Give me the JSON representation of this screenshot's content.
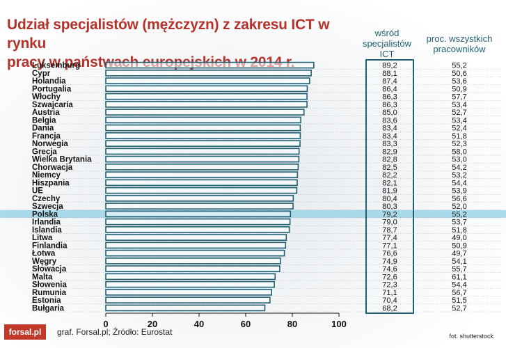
{
  "title_line1": "Udział specjalistów (mężczyzn) z zakresu ICT w rynku",
  "title_line2": "pracy w państwach europejskich w 2014 r.",
  "column_headers": {
    "ict": [
      "wśród",
      "specjalistów",
      "ICT"
    ],
    "all": [
      "proc. wszystkich",
      "pracowników"
    ]
  },
  "footer": {
    "logo": "forsal.pl",
    "source": "graf. Forsal.pl; Źródło: Eurostat",
    "photo": "fot. shutterstock"
  },
  "colors": {
    "title": "#b5332a",
    "bar_stroke": "#1f5f73",
    "highlight_row": "#8fd0e6",
    "box_stroke": "#1f5f73"
  },
  "chart_data": {
    "type": "bar",
    "orientation": "horizontal",
    "categories": [
      "Luksemburg",
      "Cypr",
      "Holandia",
      "Portugalia",
      "Włochy",
      "Szwajcaria",
      "Austria",
      "Belgia",
      "Dania",
      "Francja",
      "Norwegia",
      "Grecja",
      "Wielka Brytania",
      "Chorwacja",
      "Niemcy",
      "Hiszpania",
      "UE",
      "Czechy",
      "Szwecja",
      "Polska",
      "Irlandia",
      "Islandia",
      "Litwa",
      "Finlandia",
      "Łotwa",
      "Węgry",
      "Słowacja",
      "Malta",
      "Słowenia",
      "Rumunia",
      "Estonia",
      "Bułgaria"
    ],
    "series": [
      {
        "name": "wśród specjalistów ICT",
        "values": [
          89.2,
          88.1,
          87.4,
          86.4,
          86.3,
          86.3,
          85.0,
          83.6,
          83.4,
          83.4,
          83.3,
          82.9,
          82.8,
          82.5,
          82.2,
          82.1,
          81.9,
          80.4,
          80.3,
          79.2,
          79.0,
          78.7,
          77.4,
          77.1,
          76.6,
          74.9,
          74.6,
          72.6,
          72.3,
          71.1,
          70.4,
          68.2
        ],
        "labels": [
          "89,2",
          "88,1",
          "87,4",
          "86,4",
          "86,3",
          "86,3",
          "85,0",
          "83,6",
          "83,4",
          "83,4",
          "83,3",
          "82,9",
          "82,8",
          "82,5",
          "82,2",
          "82,1",
          "81,9",
          "80,4",
          "80,3",
          "79,2",
          "79,0",
          "78,7",
          "77,4",
          "77,1",
          "76,6",
          "74,9",
          "74,6",
          "72,6",
          "72,3",
          "71,1",
          "70,4",
          "68,2"
        ]
      },
      {
        "name": "proc. wszystkich pracowników",
        "values": [
          55.2,
          50.6,
          53.6,
          50.9,
          57.7,
          53.4,
          52.7,
          53.4,
          52.4,
          51.8,
          52.3,
          58.0,
          53.0,
          54.2,
          53.2,
          54.4,
          53.9,
          56.6,
          52.0,
          55.2,
          53.7,
          51.8,
          49.0,
          50.9,
          49.7,
          54.1,
          55.7,
          61.1,
          54.4,
          56.7,
          51.5,
          52.7
        ],
        "labels": [
          "55,2",
          "50,6",
          "53,6",
          "50,9",
          "57,7",
          "53,4",
          "52,7",
          "53,4",
          "52,4",
          "51,8",
          "52,3",
          "58,0",
          "53,0",
          "54,2",
          "53,2",
          "54,4",
          "53,9",
          "56,6",
          "52,0",
          "55,2",
          "53,7",
          "51,8",
          "49,0",
          "50,9",
          "49,7",
          "54,1",
          "55,7",
          "61,1",
          "54,4",
          "56,7",
          "51,5",
          "52,7"
        ]
      }
    ],
    "highlight": "Polska",
    "xlim": [
      0,
      100
    ],
    "xticks": [
      "0",
      "20",
      "40",
      "60",
      "80",
      "100"
    ],
    "grid": false
  }
}
